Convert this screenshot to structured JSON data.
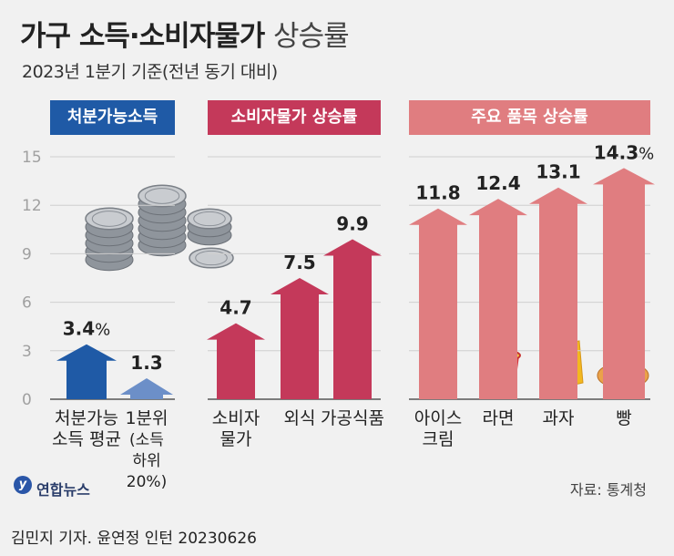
{
  "header": {
    "title_bold": "가구 소득·소비자물가",
    "title_light": "상승률",
    "subtitle": "2023년 1분기 기준(전년 동기 대비)"
  },
  "sections": [
    {
      "label": "처분가능소득",
      "color": "#1f5aa6"
    },
    {
      "label": "소비자물가 상승률",
      "color": "#c4395a"
    },
    {
      "label": "주요 품목 상승률",
      "color": "#e07d80"
    }
  ],
  "chart_data": {
    "type": "bar",
    "ylim": [
      0,
      15
    ],
    "yticks": [
      "0",
      "3",
      "6",
      "9",
      "12",
      "15"
    ],
    "categories": [
      [
        "처분가능",
        "소득 평균"
      ],
      [
        "1분위",
        "(소득",
        "하위",
        "20%)"
      ],
      [
        "소비자",
        "물가"
      ],
      [
        "외식"
      ],
      [
        "가공식품"
      ],
      [
        "아이스",
        "크림"
      ],
      [
        "라면"
      ],
      [
        "과자"
      ],
      [
        "빵"
      ]
    ],
    "values": [
      3.4,
      1.3,
      4.7,
      7.5,
      9.9,
      11.8,
      12.4,
      13.1,
      14.3
    ],
    "value_labels": [
      "3.4",
      "1.3",
      "4.7",
      "7.5",
      "9.9",
      "11.8",
      "12.4",
      "13.1",
      "14.3"
    ],
    "unit": "%",
    "bar_colors": [
      "#1f5aa6",
      "#6c8fc8",
      "#c4395a",
      "#c4395a",
      "#c4395a",
      "#e07d80",
      "#e07d80",
      "#e07d80",
      "#e07d80"
    ],
    "groups": [
      "처분가능소득",
      "처분가능소득",
      "소비자물가 상승률",
      "소비자물가 상승률",
      "소비자물가 상승률",
      "주요 품목 상승률",
      "주요 품목 상승률",
      "주요 품목 상승률",
      "주요 품목 상승률"
    ]
  },
  "footer": {
    "logo": "연합뉴스",
    "source": "자료: 통계청",
    "byline": "김민지 기자. 윤연정 인턴  20230626"
  }
}
